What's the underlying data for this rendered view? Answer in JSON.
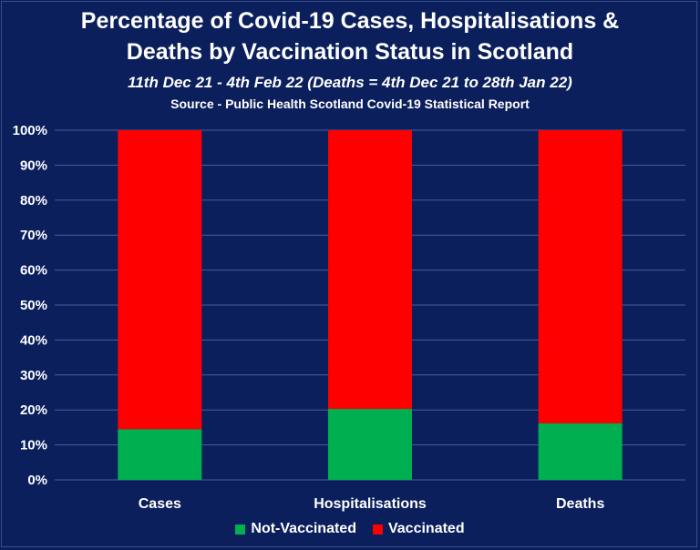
{
  "chart_data": {
    "type": "bar",
    "stacked": true,
    "title_line1": "Percentage of Covid-19 Cases, Hospitalisations &",
    "title_line2": "Deaths by Vaccination Status in Scotland",
    "subtitle": "11th Dec 21 - 4th Feb 22 (Deaths = 4th Dec 21 to 28th Jan 22)",
    "source": "Source - Public Health Scotland Covid-19 Statistical Report",
    "categories": [
      "Cases",
      "Hospitalisations",
      "Deaths"
    ],
    "series": [
      {
        "name": "Not-Vaccinated",
        "color": "#00b050",
        "values": [
          14.5,
          20.3,
          16.2
        ]
      },
      {
        "name": "Vaccinated",
        "color": "#ff0000",
        "values": [
          85.5,
          79.7,
          83.8
        ]
      }
    ],
    "ylim": [
      0,
      100
    ],
    "yticks": [
      "0%",
      "10%",
      "20%",
      "30%",
      "40%",
      "50%",
      "60%",
      "70%",
      "80%",
      "90%",
      "100%"
    ],
    "grid": true,
    "legend_position": "bottom"
  }
}
